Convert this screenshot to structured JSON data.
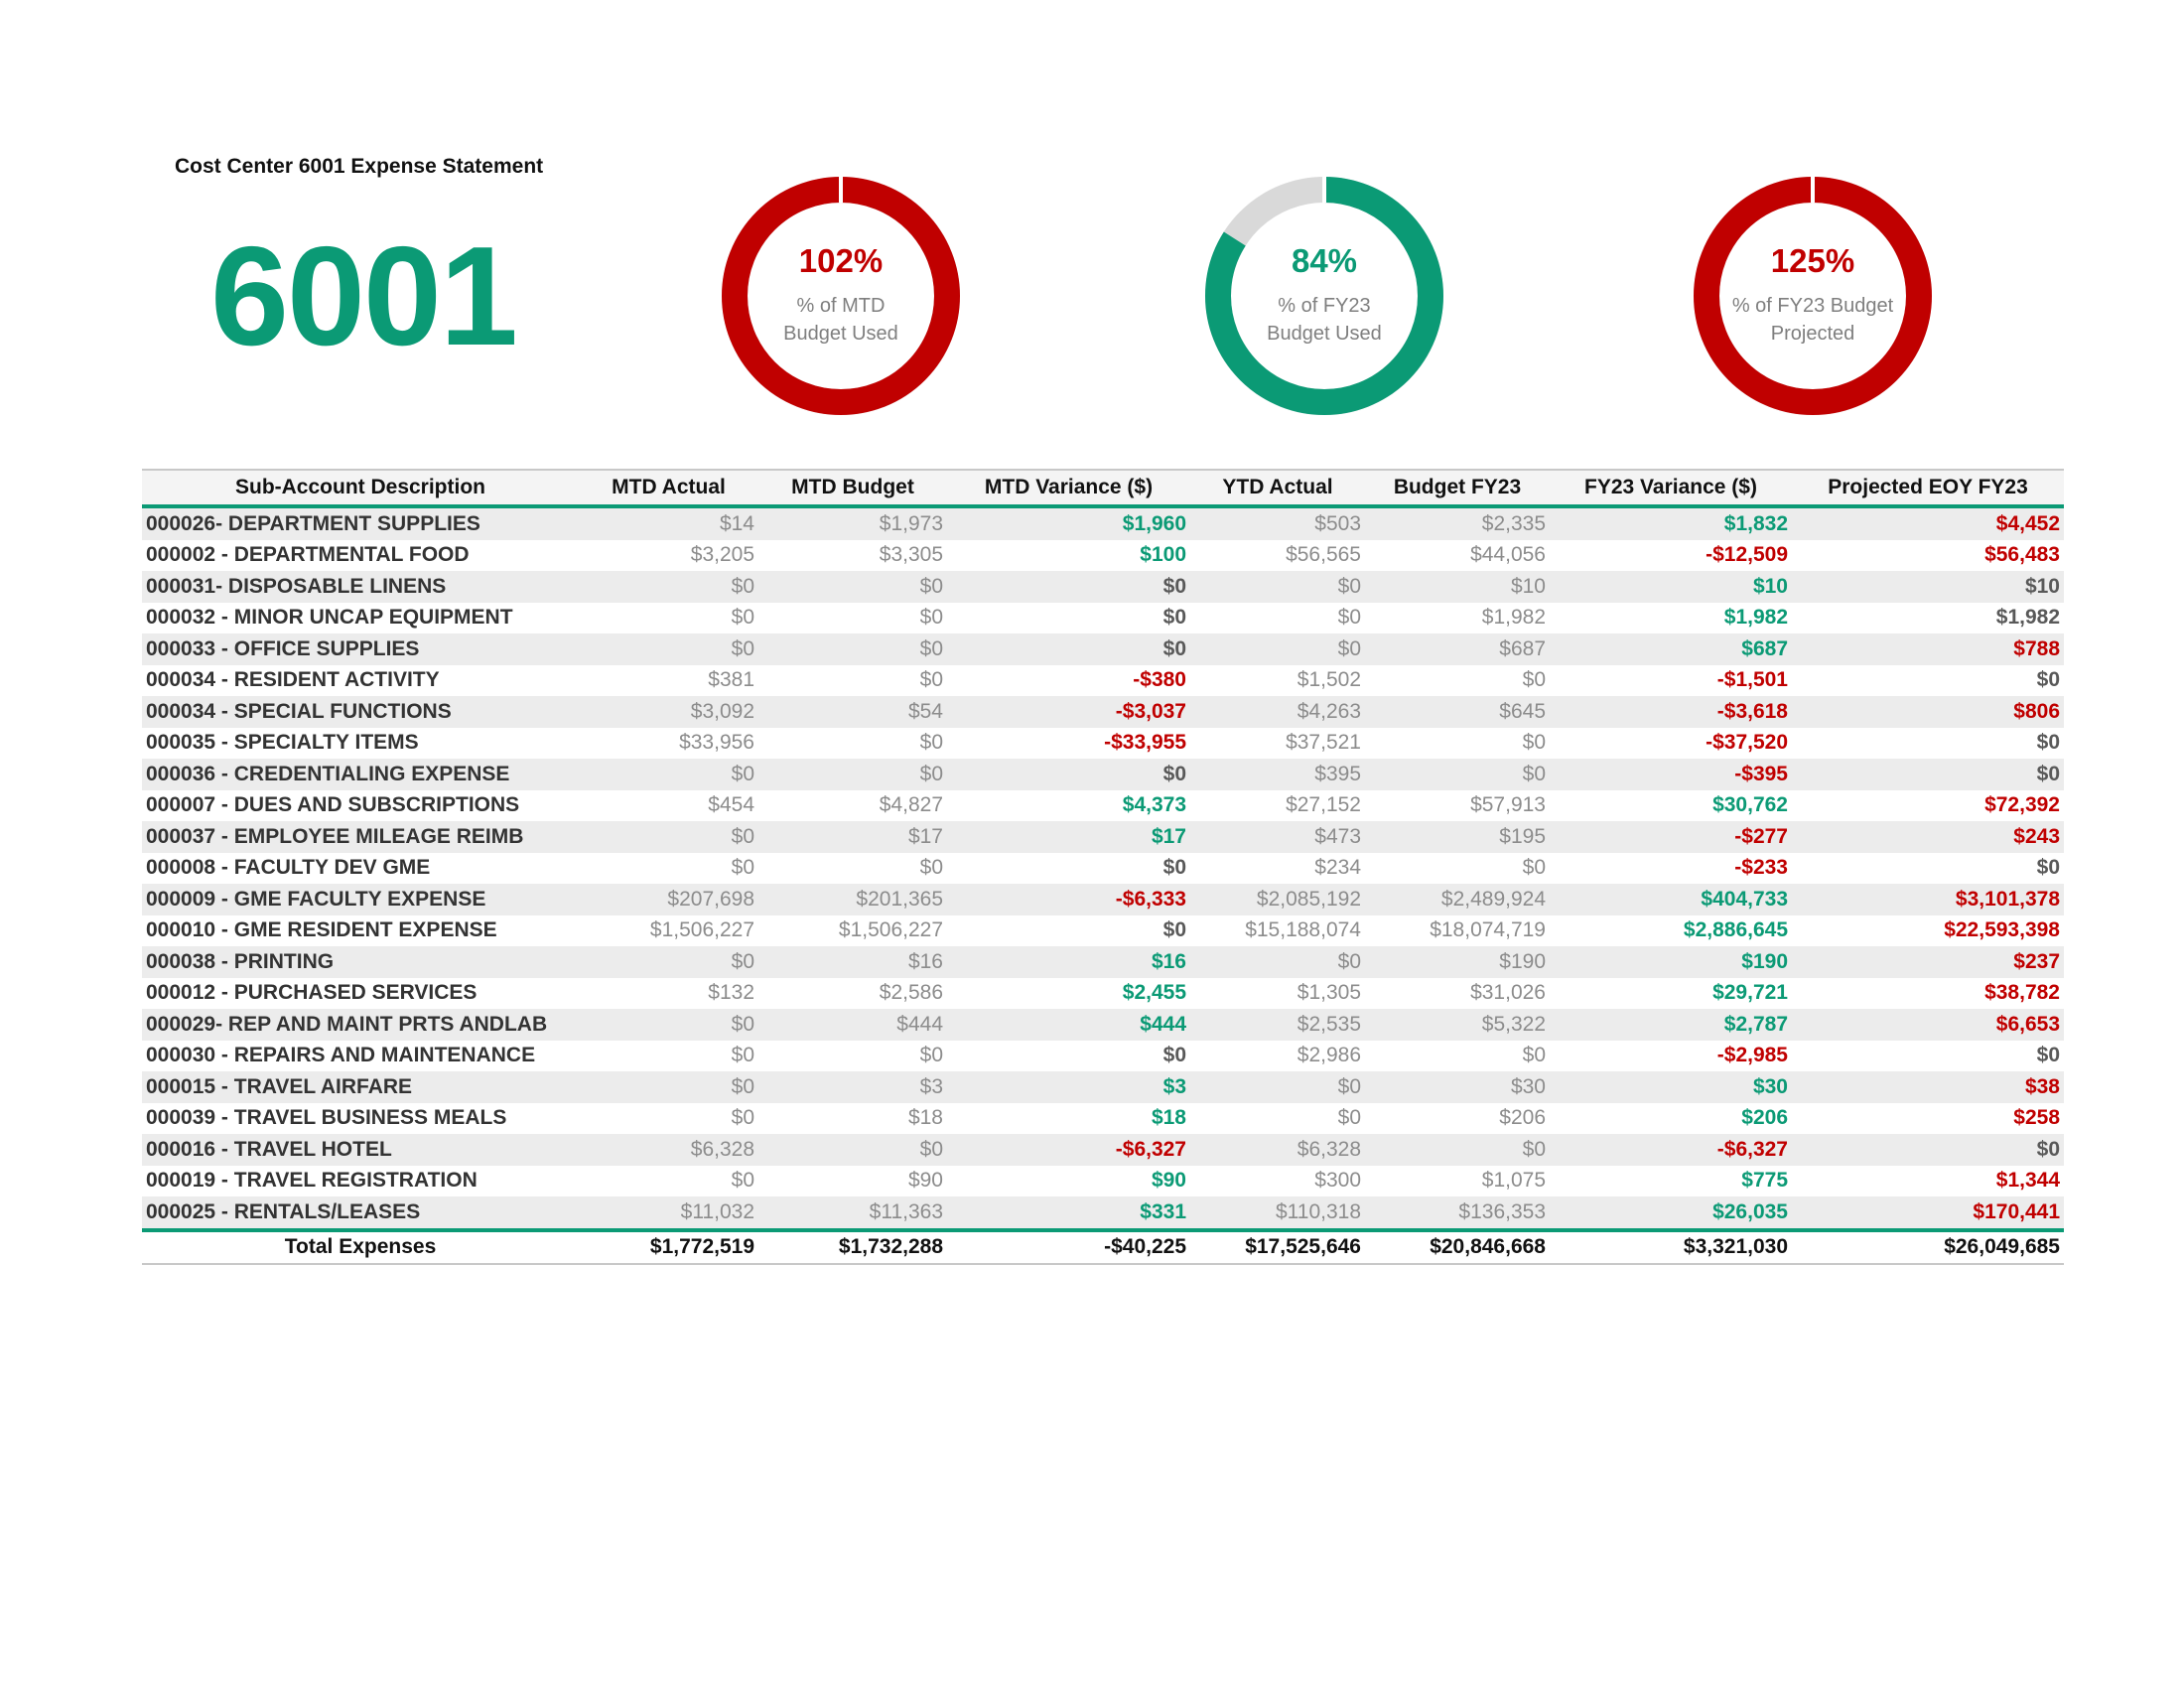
{
  "heading": "Cost Center 6001 Expense Statement",
  "cost_center": "6001",
  "colors": {
    "green": "#0b9a75",
    "red": "#c00000",
    "gray_track": "#d9d9d9"
  },
  "gauges": [
    {
      "value": "102%",
      "label_line1": "% of MTD",
      "label_line2": "Budget Used",
      "fraction": 1.02,
      "color": "#c00000",
      "value_class": "red"
    },
    {
      "value": "84%",
      "label_line1": "% of FY23",
      "label_line2": "Budget Used",
      "fraction": 0.84,
      "color": "#0b9a75",
      "value_class": "green"
    },
    {
      "value": "125%",
      "label_line1": "% of FY23 Budget",
      "label_line2": "Projected",
      "fraction": 1.25,
      "color": "#c00000",
      "value_class": "red"
    }
  ],
  "table": {
    "headers": [
      "Sub-Account Description",
      "MTD Actual",
      "MTD Budget",
      "MTD Variance ($)",
      "YTD Actual",
      "Budget FY23",
      "FY23 Variance ($)",
      "Projected EOY FY23"
    ],
    "rows": [
      {
        "desc": "000026- DEPARTMENT SUPPLIES",
        "mtd_actual": "$14",
        "mtd_budget": "$1,973",
        "mtd_var": "$1,960",
        "mtd_var_c": "green",
        "ytd_actual": "$503",
        "budget_fy23": "$2,335",
        "fy23_var": "$1,832",
        "fy23_var_c": "green",
        "proj": "$4,452",
        "proj_c": "red"
      },
      {
        "desc": "000002 -  DEPARTMENTAL FOOD",
        "mtd_actual": "$3,205",
        "mtd_budget": "$3,305",
        "mtd_var": "$100",
        "mtd_var_c": "green",
        "ytd_actual": "$56,565",
        "budget_fy23": "$44,056",
        "fy23_var": "-$12,509",
        "fy23_var_c": "red",
        "proj": "$56,483",
        "proj_c": "red"
      },
      {
        "desc": "000031- DISPOSABLE LINENS",
        "mtd_actual": "$0",
        "mtd_budget": "$0",
        "mtd_var": "$0",
        "mtd_var_c": "gray",
        "ytd_actual": "$0",
        "budget_fy23": "$10",
        "fy23_var": "$10",
        "fy23_var_c": "green",
        "proj": "$10",
        "proj_c": "gray"
      },
      {
        "desc": "000032 - MINOR UNCAP EQUIPMENT",
        "mtd_actual": "$0",
        "mtd_budget": "$0",
        "mtd_var": "$0",
        "mtd_var_c": "gray",
        "ytd_actual": "$0",
        "budget_fy23": "$1,982",
        "fy23_var": "$1,982",
        "fy23_var_c": "green",
        "proj": "$1,982",
        "proj_c": "gray"
      },
      {
        "desc": "000033 - OFFICE SUPPLIES",
        "mtd_actual": "$0",
        "mtd_budget": "$0",
        "mtd_var": "$0",
        "mtd_var_c": "gray",
        "ytd_actual": "$0",
        "budget_fy23": "$687",
        "fy23_var": "$687",
        "fy23_var_c": "green",
        "proj": "$788",
        "proj_c": "red"
      },
      {
        "desc": "000034 - RESIDENT ACTIVITY",
        "mtd_actual": "$381",
        "mtd_budget": "$0",
        "mtd_var": "-$380",
        "mtd_var_c": "red",
        "ytd_actual": "$1,502",
        "budget_fy23": "$0",
        "fy23_var": "-$1,501",
        "fy23_var_c": "red",
        "proj": "$0",
        "proj_c": "gray"
      },
      {
        "desc": "000034 -  SPECIAL FUNCTIONS",
        "mtd_actual": "$3,092",
        "mtd_budget": "$54",
        "mtd_var": "-$3,037",
        "mtd_var_c": "red",
        "ytd_actual": "$4,263",
        "budget_fy23": "$645",
        "fy23_var": "-$3,618",
        "fy23_var_c": "red",
        "proj": "$806",
        "proj_c": "red"
      },
      {
        "desc": "000035 - SPECIALTY ITEMS",
        "mtd_actual": "$33,956",
        "mtd_budget": "$0",
        "mtd_var": "-$33,955",
        "mtd_var_c": "red",
        "ytd_actual": "$37,521",
        "budget_fy23": "$0",
        "fy23_var": "-$37,520",
        "fy23_var_c": "red",
        "proj": "$0",
        "proj_c": "gray"
      },
      {
        "desc": "000036 - CREDENTIALING EXPENSE",
        "mtd_actual": "$0",
        "mtd_budget": "$0",
        "mtd_var": "$0",
        "mtd_var_c": "gray",
        "ytd_actual": "$395",
        "budget_fy23": "$0",
        "fy23_var": "-$395",
        "fy23_var_c": "red",
        "proj": "$0",
        "proj_c": "gray"
      },
      {
        "desc": "000007 -  DUES AND SUBSCRIPTIONS",
        "mtd_actual": "$454",
        "mtd_budget": "$4,827",
        "mtd_var": "$4,373",
        "mtd_var_c": "green",
        "ytd_actual": "$27,152",
        "budget_fy23": "$57,913",
        "fy23_var": "$30,762",
        "fy23_var_c": "green",
        "proj": "$72,392",
        "proj_c": "red"
      },
      {
        "desc": "000037 - EMPLOYEE MILEAGE REIMB",
        "mtd_actual": "$0",
        "mtd_budget": "$17",
        "mtd_var": "$17",
        "mtd_var_c": "green",
        "ytd_actual": "$473",
        "budget_fy23": "$195",
        "fy23_var": "-$277",
        "fy23_var_c": "red",
        "proj": "$243",
        "proj_c": "red"
      },
      {
        "desc": "000008 -  FACULTY DEV GME",
        "mtd_actual": "$0",
        "mtd_budget": "$0",
        "mtd_var": "$0",
        "mtd_var_c": "gray",
        "ytd_actual": "$234",
        "budget_fy23": "$0",
        "fy23_var": "-$233",
        "fy23_var_c": "red",
        "proj": "$0",
        "proj_c": "gray"
      },
      {
        "desc": "000009 -  GME FACULTY EXPENSE",
        "mtd_actual": "$207,698",
        "mtd_budget": "$201,365",
        "mtd_var": "-$6,333",
        "mtd_var_c": "red",
        "ytd_actual": "$2,085,192",
        "budget_fy23": "$2,489,924",
        "fy23_var": "$404,733",
        "fy23_var_c": "green",
        "proj": "$3,101,378",
        "proj_c": "red"
      },
      {
        "desc": "000010 -  GME RESIDENT EXPENSE",
        "mtd_actual": "$1,506,227",
        "mtd_budget": "$1,506,227",
        "mtd_var": "$0",
        "mtd_var_c": "gray",
        "ytd_actual": "$15,188,074",
        "budget_fy23": "$18,074,719",
        "fy23_var": "$2,886,645",
        "fy23_var_c": "green",
        "proj": "$22,593,398",
        "proj_c": "red"
      },
      {
        "desc": "000038 - PRINTING",
        "mtd_actual": "$0",
        "mtd_budget": "$16",
        "mtd_var": "$16",
        "mtd_var_c": "green",
        "ytd_actual": "$0",
        "budget_fy23": "$190",
        "fy23_var": "$190",
        "fy23_var_c": "green",
        "proj": "$237",
        "proj_c": "red"
      },
      {
        "desc": "000012 -  PURCHASED SERVICES",
        "mtd_actual": "$132",
        "mtd_budget": "$2,586",
        "mtd_var": "$2,455",
        "mtd_var_c": "green",
        "ytd_actual": "$1,305",
        "budget_fy23": "$31,026",
        "fy23_var": "$29,721",
        "fy23_var_c": "green",
        "proj": "$38,782",
        "proj_c": "red"
      },
      {
        "desc": "000029- REP AND MAINT PRTS ANDLAB",
        "mtd_actual": "$0",
        "mtd_budget": "$444",
        "mtd_var": "$444",
        "mtd_var_c": "green",
        "ytd_actual": "$2,535",
        "budget_fy23": "$5,322",
        "fy23_var": "$2,787",
        "fy23_var_c": "green",
        "proj": "$6,653",
        "proj_c": "red"
      },
      {
        "desc": "000030 - REPAIRS AND MAINTENANCE",
        "mtd_actual": "$0",
        "mtd_budget": "$0",
        "mtd_var": "$0",
        "mtd_var_c": "gray",
        "ytd_actual": "$2,986",
        "budget_fy23": "$0",
        "fy23_var": "-$2,985",
        "fy23_var_c": "red",
        "proj": "$0",
        "proj_c": "gray"
      },
      {
        "desc": "000015 -  TRAVEL AIRFARE",
        "mtd_actual": "$0",
        "mtd_budget": "$3",
        "mtd_var": "$3",
        "mtd_var_c": "green",
        "ytd_actual": "$0",
        "budget_fy23": "$30",
        "fy23_var": "$30",
        "fy23_var_c": "green",
        "proj": "$38",
        "proj_c": "red"
      },
      {
        "desc": "000039 - TRAVEL BUSINESS MEALS",
        "mtd_actual": "$0",
        "mtd_budget": "$18",
        "mtd_var": "$18",
        "mtd_var_c": "green",
        "ytd_actual": "$0",
        "budget_fy23": "$206",
        "fy23_var": "$206",
        "fy23_var_c": "green",
        "proj": "$258",
        "proj_c": "red"
      },
      {
        "desc": "000016 -  TRAVEL HOTEL",
        "mtd_actual": "$6,328",
        "mtd_budget": "$0",
        "mtd_var": "-$6,327",
        "mtd_var_c": "red",
        "ytd_actual": "$6,328",
        "budget_fy23": "$0",
        "fy23_var": "-$6,327",
        "fy23_var_c": "red",
        "proj": "$0",
        "proj_c": "gray"
      },
      {
        "desc": "000019 -  TRAVEL REGISTRATION",
        "mtd_actual": "$0",
        "mtd_budget": "$90",
        "mtd_var": "$90",
        "mtd_var_c": "green",
        "ytd_actual": "$300",
        "budget_fy23": "$1,075",
        "fy23_var": "$775",
        "fy23_var_c": "green",
        "proj": "$1,344",
        "proj_c": "red"
      },
      {
        "desc": "000025 - RENTALS/LEASES",
        "mtd_actual": "$11,032",
        "mtd_budget": "$11,363",
        "mtd_var": "$331",
        "mtd_var_c": "green",
        "ytd_actual": "$110,318",
        "budget_fy23": "$136,353",
        "fy23_var": "$26,035",
        "fy23_var_c": "green",
        "proj": "$170,441",
        "proj_c": "red"
      }
    ],
    "totals": {
      "label": "Total Expenses",
      "mtd_actual": "$1,772,519",
      "mtd_budget": "$1,732,288",
      "mtd_var": "-$40,225",
      "ytd_actual": "$17,525,646",
      "budget_fy23": "$20,846,668",
      "fy23_var": "$3,321,030",
      "proj": "$26,049,685"
    }
  }
}
